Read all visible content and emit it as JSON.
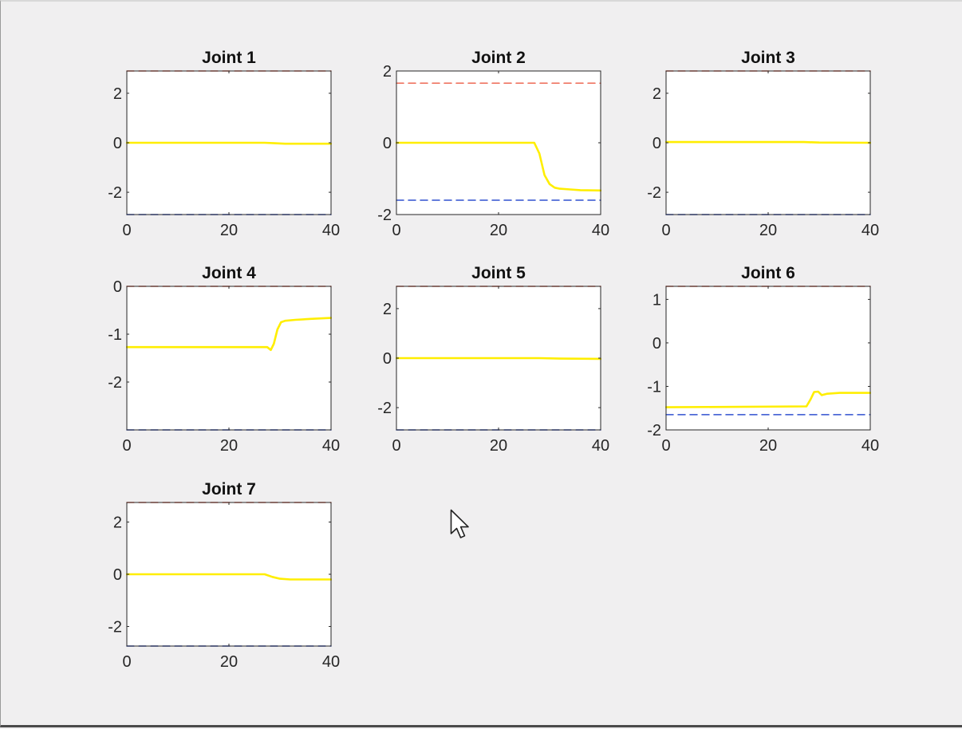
{
  "chart_data": [
    {
      "type": "line",
      "title": "Joint 1",
      "xlim": [
        0,
        40
      ],
      "ylim": [
        -2.9,
        2.9
      ],
      "xticks": [
        0,
        20,
        40
      ],
      "yticks": [
        -2,
        0,
        2
      ],
      "grid": false,
      "series": [
        {
          "role": "trajectory",
          "color": "#ffee00",
          "dash": false,
          "x": [
            0,
            27,
            29,
            31,
            40
          ],
          "y": [
            0,
            0,
            -0.02,
            -0.04,
            -0.04
          ]
        },
        {
          "role": "upper-limit",
          "color": "#ee6a55",
          "dash": true,
          "x": [
            0,
            40
          ],
          "y": [
            2.9,
            2.9
          ]
        },
        {
          "role": "lower-limit",
          "color": "#3050d0",
          "dash": true,
          "x": [
            0,
            40
          ],
          "y": [
            -2.9,
            -2.9
          ]
        }
      ]
    },
    {
      "type": "line",
      "title": "Joint 2",
      "xlim": [
        0,
        40
      ],
      "ylim": [
        -2,
        2
      ],
      "xticks": [
        0,
        20,
        40
      ],
      "yticks": [
        -2,
        0,
        2
      ],
      "grid": false,
      "series": [
        {
          "role": "trajectory",
          "color": "#ffee00",
          "dash": false,
          "x": [
            0,
            27,
            28,
            29,
            30,
            31,
            32,
            34,
            36,
            40
          ],
          "y": [
            0,
            0,
            -0.3,
            -0.9,
            -1.15,
            -1.25,
            -1.28,
            -1.3,
            -1.32,
            -1.33
          ]
        },
        {
          "role": "upper-limit",
          "color": "#ee6a55",
          "dash": true,
          "x": [
            0,
            40
          ],
          "y": [
            1.66,
            1.66
          ]
        },
        {
          "role": "lower-limit",
          "color": "#3050d0",
          "dash": true,
          "x": [
            0,
            40
          ],
          "y": [
            -1.6,
            -1.6
          ]
        }
      ]
    },
    {
      "type": "line",
      "title": "Joint 3",
      "xlim": [
        0,
        40
      ],
      "ylim": [
        -2.9,
        2.9
      ],
      "xticks": [
        0,
        20,
        40
      ],
      "yticks": [
        -2,
        0,
        2
      ],
      "grid": false,
      "series": [
        {
          "role": "trajectory",
          "color": "#ffee00",
          "dash": false,
          "x": [
            0,
            27,
            30,
            40
          ],
          "y": [
            0.03,
            0.03,
            0.01,
            0.0
          ]
        },
        {
          "role": "upper-limit",
          "color": "#ee6a55",
          "dash": true,
          "x": [
            0,
            40
          ],
          "y": [
            2.9,
            2.9
          ]
        },
        {
          "role": "lower-limit",
          "color": "#3050d0",
          "dash": true,
          "x": [
            0,
            40
          ],
          "y": [
            -2.9,
            -2.9
          ]
        }
      ]
    },
    {
      "type": "line",
      "title": "Joint 4",
      "xlim": [
        0,
        40
      ],
      "ylim": [
        -3.0,
        0
      ],
      "xticks": [
        0,
        20,
        40
      ],
      "yticks": [
        -2,
        -1,
        0
      ],
      "grid": false,
      "series": [
        {
          "role": "trajectory",
          "color": "#ffee00",
          "dash": false,
          "x": [
            0,
            27.5,
            28.2,
            28.8,
            29.5,
            30.2,
            31,
            33,
            36,
            40
          ],
          "y": [
            -1.27,
            -1.27,
            -1.33,
            -1.2,
            -0.9,
            -0.75,
            -0.72,
            -0.7,
            -0.68,
            -0.66
          ]
        },
        {
          "role": "upper-limit",
          "color": "#ee6a55",
          "dash": true,
          "x": [
            0,
            40
          ],
          "y": [
            0,
            0
          ]
        },
        {
          "role": "lower-limit",
          "color": "#3050d0",
          "dash": true,
          "x": [
            0,
            40
          ],
          "y": [
            -3.0,
            -3.0
          ]
        }
      ]
    },
    {
      "type": "line",
      "title": "Joint 5",
      "xlim": [
        0,
        40
      ],
      "ylim": [
        -2.9,
        2.9
      ],
      "xticks": [
        0,
        20,
        40
      ],
      "yticks": [
        -2,
        0,
        2
      ],
      "grid": false,
      "series": [
        {
          "role": "trajectory",
          "color": "#ffee00",
          "dash": false,
          "x": [
            0,
            28,
            32,
            40
          ],
          "y": [
            0,
            0,
            -0.02,
            -0.03
          ]
        },
        {
          "role": "upper-limit",
          "color": "#ee6a55",
          "dash": true,
          "x": [
            0,
            40
          ],
          "y": [
            2.9,
            2.9
          ]
        },
        {
          "role": "lower-limit",
          "color": "#3050d0",
          "dash": true,
          "x": [
            0,
            40
          ],
          "y": [
            -2.9,
            -2.9
          ]
        }
      ]
    },
    {
      "type": "line",
      "title": "Joint 6",
      "xlim": [
        0,
        40
      ],
      "ylim": [
        -2,
        1.3
      ],
      "xticks": [
        0,
        20,
        40
      ],
      "yticks": [
        -2,
        -1,
        0,
        1
      ],
      "grid": false,
      "series": [
        {
          "role": "trajectory",
          "color": "#ffee00",
          "dash": false,
          "x": [
            0,
            27.5,
            28.3,
            29,
            29.8,
            30.5,
            31.5,
            34,
            40
          ],
          "y": [
            -1.48,
            -1.46,
            -1.3,
            -1.13,
            -1.12,
            -1.2,
            -1.17,
            -1.15,
            -1.15
          ]
        },
        {
          "role": "upper-limit",
          "color": "#ee6a55",
          "dash": true,
          "x": [
            0,
            40
          ],
          "y": [
            1.3,
            1.3
          ]
        },
        {
          "role": "lower-limit",
          "color": "#3050d0",
          "dash": true,
          "x": [
            0,
            40
          ],
          "y": [
            -1.65,
            -1.65
          ]
        }
      ]
    },
    {
      "type": "line",
      "title": "Joint 7",
      "xlim": [
        0,
        40
      ],
      "ylim": [
        -2.75,
        2.75
      ],
      "xticks": [
        0,
        20,
        40
      ],
      "yticks": [
        -2,
        0,
        2
      ],
      "grid": false,
      "series": [
        {
          "role": "trajectory",
          "color": "#ffee00",
          "dash": false,
          "x": [
            0,
            27,
            28.5,
            30,
            32,
            40
          ],
          "y": [
            0,
            0,
            -0.1,
            -0.17,
            -0.2,
            -0.2
          ]
        },
        {
          "role": "upper-limit",
          "color": "#ee6a55",
          "dash": true,
          "x": [
            0,
            40
          ],
          "y": [
            2.75,
            2.75
          ]
        },
        {
          "role": "lower-limit",
          "color": "#3050d0",
          "dash": true,
          "x": [
            0,
            40
          ],
          "y": [
            -2.75,
            -2.75
          ]
        }
      ]
    }
  ]
}
